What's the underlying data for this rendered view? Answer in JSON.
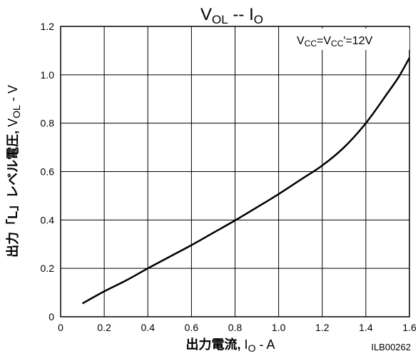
{
  "chart_data": {
    "type": "line",
    "title": {
      "main": "V",
      "sub1": "OL",
      "sep": " -- ",
      "main2": "I",
      "sub2": "O"
    },
    "annotation": {
      "p1": "V",
      "s1": "CC",
      "p2": "=V",
      "s2": "CC",
      "p3": "'=12V"
    },
    "xlabel": {
      "jp": "出力電流",
      "comma": ",",
      "sym": "I",
      "sub": "O",
      "unit": " - A"
    },
    "ylabel": {
      "jp": "出力「L」レベル電圧",
      "comma": ",",
      "sym": "V",
      "sub": "OL",
      "unit": " - V"
    },
    "xlim": [
      0,
      1.6
    ],
    "ylim": [
      0,
      1.2
    ],
    "x_ticks": [
      0,
      0.2,
      0.4,
      0.6,
      0.8,
      1.0,
      1.2,
      1.4,
      1.6
    ],
    "x_tick_labels": [
      "0",
      "0.2",
      "0.4",
      "0.6",
      "0.8",
      "1.0",
      "1.2",
      "1.4",
      "1.6"
    ],
    "y_ticks": [
      0,
      0.2,
      0.4,
      0.6,
      0.8,
      1.0,
      1.2
    ],
    "y_tick_labels": [
      "0",
      "0.2",
      "0.4",
      "0.6",
      "0.8",
      "1.0",
      "1.2"
    ],
    "grid": true,
    "code": "ILB00262",
    "series": [
      {
        "x": [
          0.1,
          0.2,
          0.3,
          0.4,
          0.5,
          0.6,
          0.7,
          0.8,
          0.9,
          1.0,
          1.1,
          1.2,
          1.3,
          1.4,
          1.5,
          1.55,
          1.6
        ],
        "y": [
          0.055,
          0.105,
          0.15,
          0.2,
          0.248,
          0.296,
          0.347,
          0.398,
          0.452,
          0.507,
          0.566,
          0.625,
          0.7,
          0.8,
          0.925,
          0.99,
          1.07
        ]
      }
    ]
  }
}
